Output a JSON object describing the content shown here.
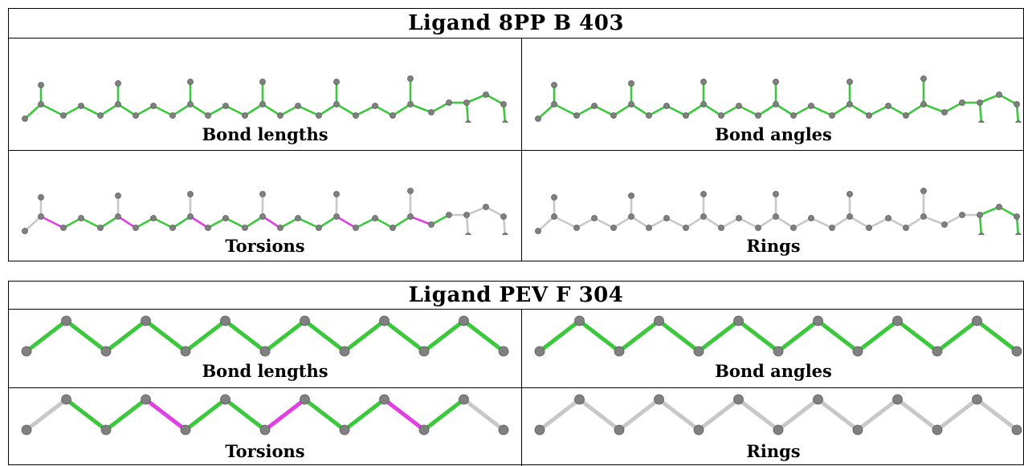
{
  "panels": [
    {
      "title": "Ligand 8PP B 403",
      "cells": [
        {
          "label": "Bond lengths",
          "scheme": "bond_lengths"
        },
        {
          "label": "Bond angles",
          "scheme": "bond_angles"
        },
        {
          "label": "Torsions",
          "scheme": "torsions"
        },
        {
          "label": "Rings",
          "scheme": "rings"
        }
      ]
    },
    {
      "title": "Ligand PEV F 304",
      "cells": [
        {
          "label": "Bond lengths",
          "scheme": "all_green"
        },
        {
          "label": "Bond angles",
          "scheme": "all_green"
        },
        {
          "label": "Torsions",
          "scheme": "torsions"
        },
        {
          "label": "Rings",
          "scheme": "all_grey"
        }
      ]
    }
  ],
  "colors": {
    "pass": "#3cc83c",
    "outlier": "#e040e0",
    "unassessed": "#c8c8c8",
    "atom": "#808080",
    "border": "#000000"
  }
}
